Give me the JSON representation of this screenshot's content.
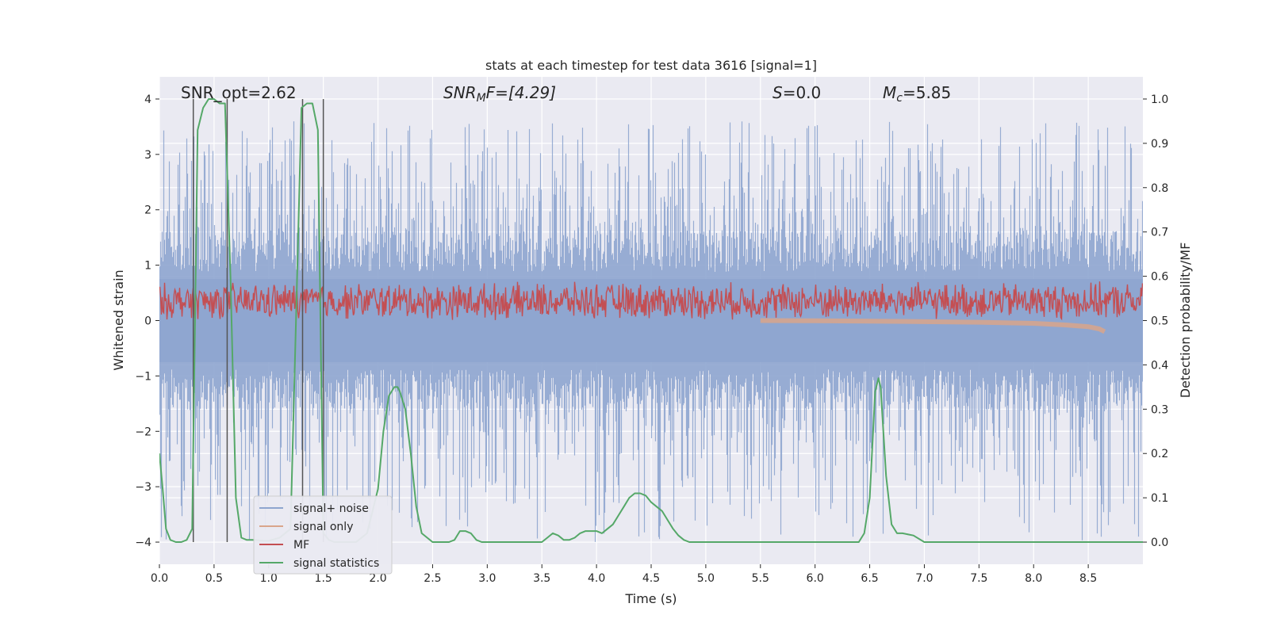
{
  "chart_data": {
    "type": "line",
    "title": "stats at each timestep for test data 3616 [signal=1]",
    "xlabel": "Time (s)",
    "ylabel_left": "Whitened strain",
    "ylabel_right": "Detection probability/MF",
    "xlim": [
      0,
      9
    ],
    "ylim_left": [
      -4.4,
      4.4
    ],
    "ylim_right": [
      -0.05,
      1.05
    ],
    "x_ticks": [
      0.0,
      0.5,
      1.0,
      1.5,
      2.0,
      2.5,
      3.0,
      3.5,
      4.0,
      4.5,
      5.0,
      5.5,
      6.0,
      6.5,
      7.0,
      7.5,
      8.0,
      8.5
    ],
    "x_tick_labels": [
      "0.0",
      "0.5",
      "1.0",
      "1.5",
      "2.0",
      "2.5",
      "3.0",
      "3.5",
      "4.0",
      "4.5",
      "5.0",
      "5.5",
      "6.0",
      "6.5",
      "7.0",
      "7.5",
      "8.0",
      "8.5"
    ],
    "y_ticks_left": [
      -4,
      -3,
      -2,
      -1,
      0,
      1,
      2,
      3,
      4
    ],
    "y_tick_labels_left": [
      "−4",
      "−3",
      "−2",
      "−1",
      "0",
      "1",
      "2",
      "3",
      "4"
    ],
    "y_ticks_right": [
      0.0,
      0.1,
      0.2,
      0.3,
      0.4,
      0.5,
      0.6,
      0.7,
      0.8,
      0.9,
      1.0
    ],
    "y_tick_labels_right": [
      "0.0",
      "0.1",
      "0.2",
      "0.3",
      "0.4",
      "0.5",
      "0.6",
      "0.7",
      "0.8",
      "0.9",
      "1.0"
    ],
    "grid": true,
    "legend_placement": "lower-left",
    "annotations": {
      "snr_opt": "SNR_opt=2.62",
      "snr_mf_main": "SNR",
      "snr_mf_sub": "M",
      "snr_mf_rest": "F=[4.29]",
      "s_main": "S",
      "s_rest": "=0.0",
      "mc_main": "M",
      "mc_sub": "c",
      "mc_rest": "=5.85"
    },
    "series": [
      {
        "name": "signal+ noise",
        "color": "#8ea5cf",
        "axis": "left",
        "style": "noise-band",
        "x_range": [
          0,
          9
        ],
        "typical_max": 1.6,
        "typical_min": -1.6,
        "spike_max": 3.6,
        "spike_min": -4.0
      },
      {
        "name": "signal only",
        "color": "#d9a58b",
        "axis": "left",
        "x": [
          5.5,
          6.0,
          6.5,
          7.0,
          7.5,
          8.0,
          8.3,
          8.5,
          8.6,
          8.65
        ],
        "y": [
          0.0,
          -0.005,
          -0.01,
          -0.02,
          -0.03,
          -0.05,
          -0.08,
          -0.11,
          -0.15,
          -0.2
        ]
      },
      {
        "name": "MF",
        "color": "#c44e52",
        "axis": "left",
        "style": "mf-band",
        "x_range": [
          0,
          9
        ],
        "mean": 0.35,
        "amplitude": 0.3,
        "peak_max": 1.0,
        "min": 0.0
      },
      {
        "name": "signal statistics",
        "color": "#55a868",
        "axis": "right",
        "x": [
          0.0,
          0.03,
          0.06,
          0.1,
          0.15,
          0.2,
          0.25,
          0.3,
          0.35,
          0.4,
          0.45,
          0.5,
          0.55,
          0.6,
          0.65,
          0.7,
          0.75,
          0.8,
          0.85,
          0.9,
          0.95,
          1.0,
          1.1,
          1.2,
          1.25,
          1.3,
          1.35,
          1.4,
          1.45,
          1.5,
          1.55,
          1.6,
          1.7,
          1.8,
          1.9,
          2.0,
          2.05,
          2.1,
          2.15,
          2.18,
          2.2,
          2.25,
          2.3,
          2.35,
          2.4,
          2.5,
          2.6,
          2.65,
          2.7,
          2.75,
          2.8,
          2.85,
          2.9,
          2.95,
          3.0,
          3.5,
          3.55,
          3.6,
          3.65,
          3.7,
          3.75,
          3.8,
          3.85,
          3.9,
          3.95,
          4.0,
          4.05,
          4.1,
          4.15,
          4.2,
          4.25,
          4.3,
          4.35,
          4.4,
          4.45,
          4.5,
          4.55,
          4.6,
          4.65,
          4.7,
          4.75,
          4.8,
          4.85,
          4.9,
          4.95,
          5.0,
          5.5,
          6.0,
          6.4,
          6.45,
          6.5,
          6.55,
          6.58,
          6.6,
          6.65,
          6.7,
          6.75,
          6.8,
          6.9,
          7.0,
          7.5,
          8.0,
          8.5,
          9.0
        ],
        "y": [
          0.2,
          0.12,
          0.03,
          0.005,
          0.0,
          0.0,
          0.005,
          0.03,
          0.93,
          0.98,
          1.0,
          1.0,
          0.99,
          0.99,
          0.6,
          0.1,
          0.01,
          0.005,
          0.005,
          0.004,
          0.003,
          0.003,
          0.01,
          0.03,
          0.5,
          0.98,
          0.99,
          0.99,
          0.93,
          0.02,
          0.005,
          0.0,
          0.0,
          0.0,
          0.02,
          0.12,
          0.25,
          0.33,
          0.35,
          0.35,
          0.34,
          0.3,
          0.2,
          0.08,
          0.02,
          0.0,
          0.0,
          0.0,
          0.005,
          0.025,
          0.025,
          0.02,
          0.005,
          0.0,
          0.0,
          0.0,
          0.01,
          0.02,
          0.015,
          0.005,
          0.005,
          0.01,
          0.02,
          0.025,
          0.025,
          0.025,
          0.02,
          0.03,
          0.04,
          0.06,
          0.08,
          0.1,
          0.11,
          0.11,
          0.105,
          0.09,
          0.08,
          0.07,
          0.05,
          0.03,
          0.015,
          0.005,
          0.0,
          0.0,
          0.0,
          0.0,
          0.0,
          0.0,
          0.0,
          0.02,
          0.1,
          0.34,
          0.37,
          0.35,
          0.15,
          0.04,
          0.02,
          0.02,
          0.015,
          0.0,
          0.0,
          0.0,
          0.0,
          0.0
        ]
      }
    ],
    "vertical_lines": {
      "color": "#555555",
      "x": [
        0.31,
        0.62,
        1.31,
        1.5
      ]
    }
  }
}
